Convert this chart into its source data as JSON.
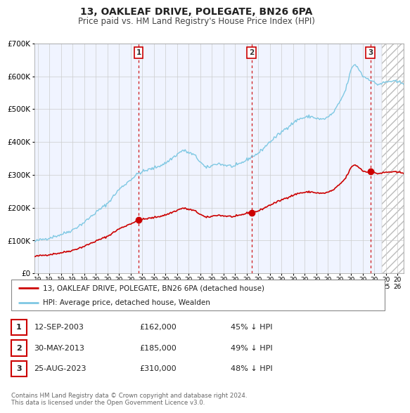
{
  "title": "13, OAKLEAF DRIVE, POLEGATE, BN26 6PA",
  "subtitle": "Price paid vs. HM Land Registry's House Price Index (HPI)",
  "xlim": [
    1994.7,
    2026.5
  ],
  "ylim": [
    0,
    700000
  ],
  "yticks": [
    0,
    100000,
    200000,
    300000,
    400000,
    500000,
    600000,
    700000
  ],
  "ytick_labels": [
    "£0",
    "£100K",
    "£200K",
    "£300K",
    "£400K",
    "£500K",
    "£600K",
    "£700K"
  ],
  "xticks": [
    1995,
    1996,
    1997,
    1998,
    1999,
    2000,
    2001,
    2002,
    2003,
    2004,
    2005,
    2006,
    2007,
    2008,
    2009,
    2010,
    2011,
    2012,
    2013,
    2014,
    2015,
    2016,
    2017,
    2018,
    2019,
    2020,
    2021,
    2022,
    2023,
    2024,
    2025,
    2026
  ],
  "hpi_color": "#7ec8e3",
  "price_color": "#cc0000",
  "vline_color": "#cc0000",
  "sale_points": [
    {
      "year": 2003.7,
      "price": 162000,
      "label": "1"
    },
    {
      "year": 2013.42,
      "price": 185000,
      "label": "2"
    },
    {
      "year": 2023.65,
      "price": 310000,
      "label": "3"
    }
  ],
  "legend_price_label": "13, OAKLEAF DRIVE, POLEGATE, BN26 6PA (detached house)",
  "legend_hpi_label": "HPI: Average price, detached house, Wealden",
  "table_rows": [
    {
      "num": "1",
      "date": "12-SEP-2003",
      "price": "£162,000",
      "pct": "45% ↓ HPI"
    },
    {
      "num": "2",
      "date": "30-MAY-2013",
      "price": "£185,000",
      "pct": "49% ↓ HPI"
    },
    {
      "num": "3",
      "date": "25-AUG-2023",
      "price": "£310,000",
      "pct": "48% ↓ HPI"
    }
  ],
  "footer": "Contains HM Land Registry data © Crown copyright and database right 2024.\nThis data is licensed under the Open Government Licence v3.0.",
  "hatch_region_start": 2024.65,
  "background_color": "#ffffff",
  "plot_bg_color": "#f0f4ff",
  "grid_color": "#cccccc"
}
